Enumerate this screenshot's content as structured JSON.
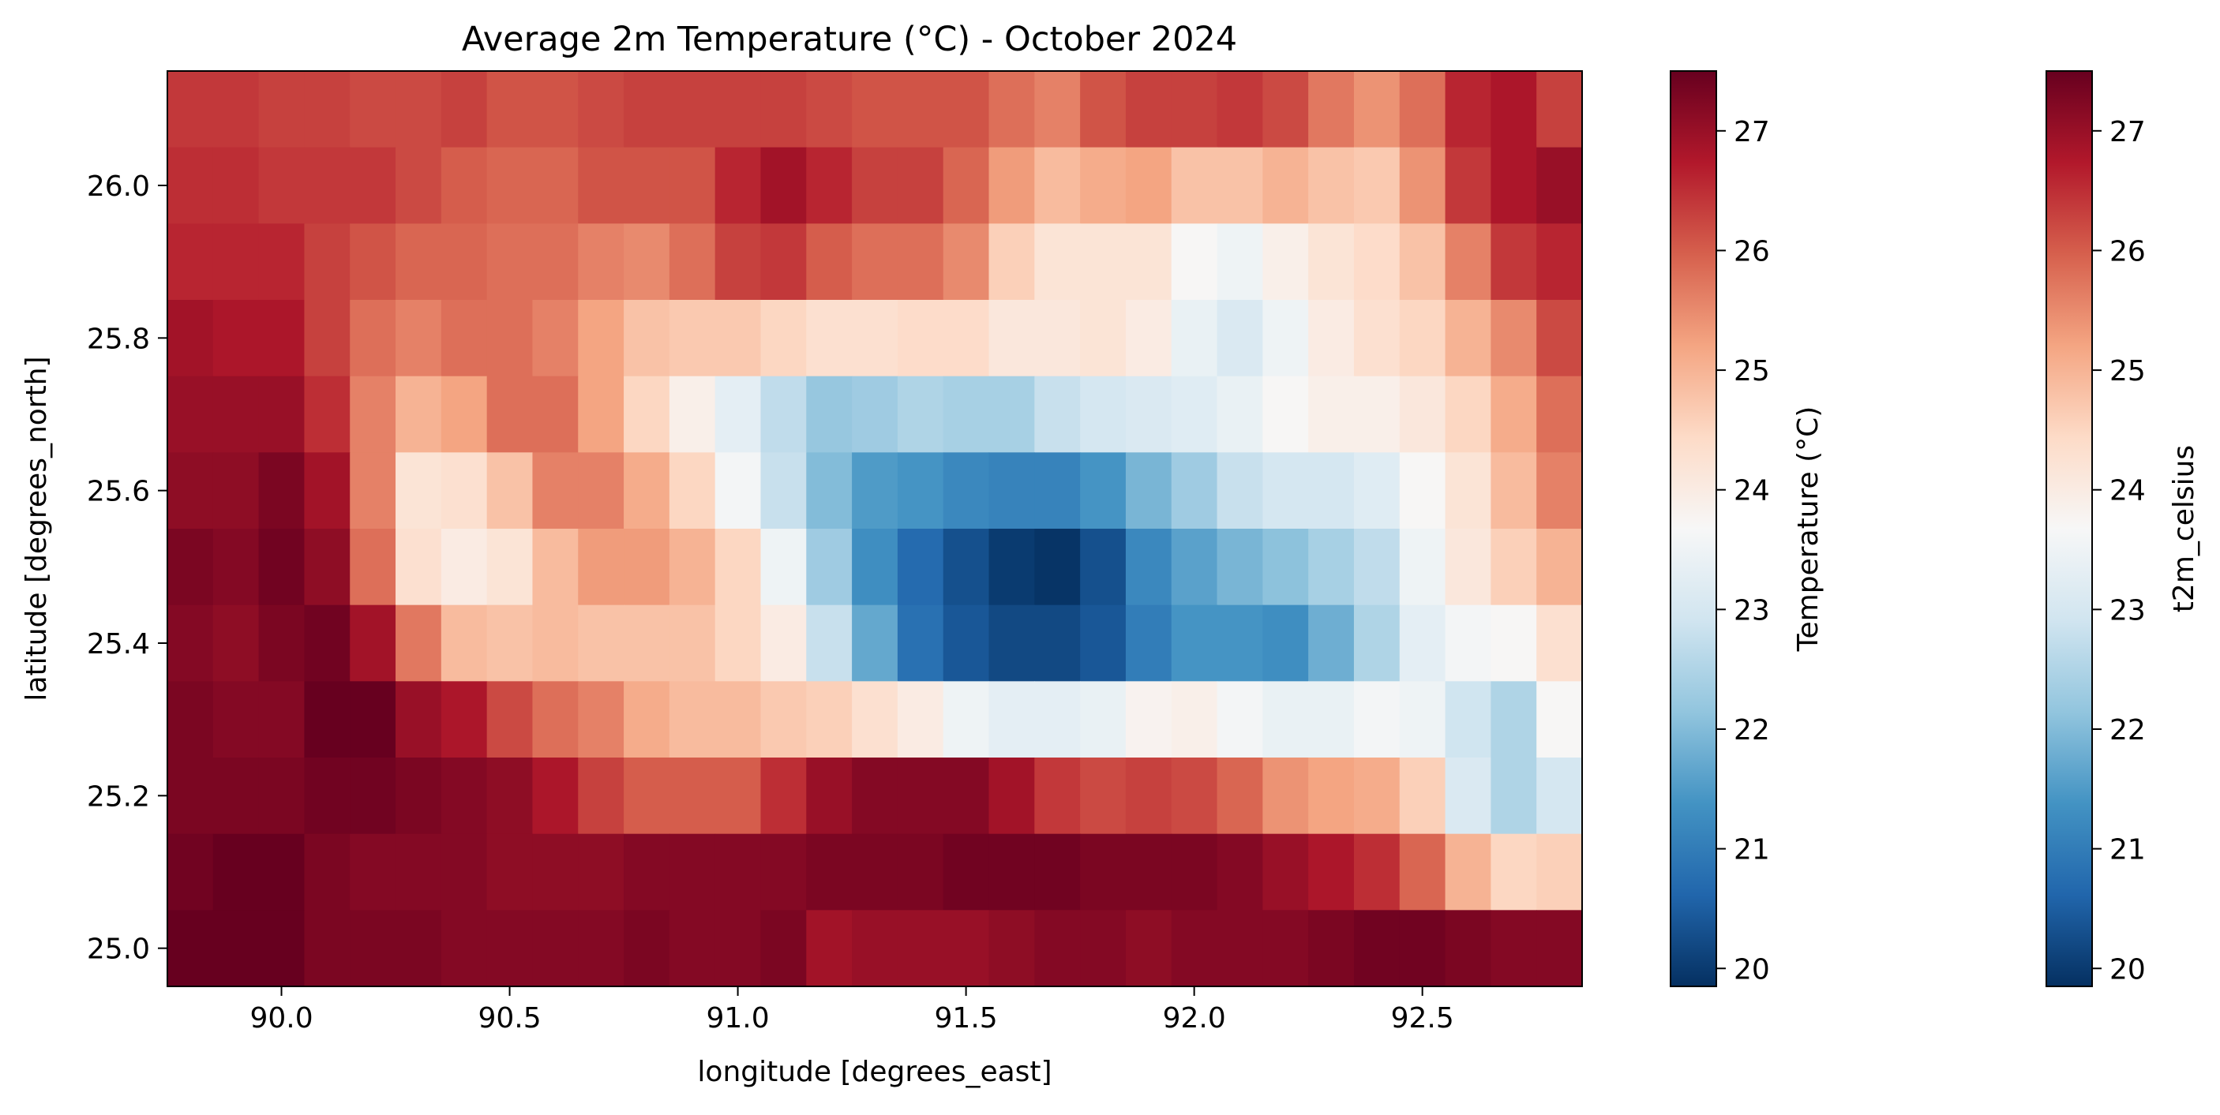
{
  "chart_data": {
    "type": "heatmap",
    "title": "Average 2m Temperature (°C) - October 2024",
    "xlabel": "longitude [degrees_east]",
    "ylabel": "latitude [degrees_north]",
    "xlim": [
      89.75,
      92.85
    ],
    "ylim": [
      24.95,
      26.15
    ],
    "x_ticks": [
      90.0,
      90.5,
      91.0,
      91.5,
      92.0,
      92.5
    ],
    "x_tick_labels": [
      "90.0",
      "90.5",
      "91.0",
      "91.5",
      "92.0",
      "92.5"
    ],
    "y_ticks": [
      25.0,
      25.2,
      25.4,
      25.6,
      25.8,
      26.0
    ],
    "y_tick_labels": [
      "25.0",
      "25.2",
      "25.4",
      "25.6",
      "25.8",
      "26.0"
    ],
    "x": [
      89.8,
      89.9,
      90.0,
      90.1,
      90.2,
      90.3,
      90.4,
      90.5,
      90.6,
      90.7,
      90.8,
      90.9,
      91.0,
      91.1,
      91.2,
      91.3,
      91.4,
      91.5,
      91.6,
      91.7,
      91.8,
      91.9,
      92.0,
      92.1,
      92.2,
      92.3,
      92.4,
      92.5,
      92.6,
      92.7,
      92.8
    ],
    "y": [
      26.1,
      26.0,
      25.9,
      25.8,
      25.7,
      25.6,
      25.5,
      25.4,
      25.3,
      25.2,
      25.1,
      25.0
    ],
    "z": [
      [
        26.4,
        26.4,
        26.3,
        26.3,
        26.2,
        26.2,
        26.3,
        26.1,
        26.1,
        26.2,
        26.3,
        26.3,
        26.3,
        26.3,
        26.2,
        26.1,
        26.1,
        26.1,
        25.8,
        25.6,
        26.1,
        26.3,
        26.3,
        26.4,
        26.2,
        25.7,
        25.4,
        25.8,
        26.6,
        26.8,
        26.3
      ],
      [
        26.5,
        26.5,
        26.4,
        26.4,
        26.4,
        26.2,
        26.0,
        25.9,
        25.9,
        26.1,
        26.1,
        26.1,
        26.6,
        26.9,
        26.6,
        26.3,
        26.3,
        25.9,
        25.3,
        24.9,
        25.1,
        25.2,
        24.8,
        24.8,
        25.0,
        24.8,
        24.7,
        25.4,
        26.4,
        26.8,
        27.0
      ],
      [
        26.6,
        26.6,
        26.6,
        26.3,
        26.1,
        25.9,
        25.9,
        25.8,
        25.8,
        25.6,
        25.5,
        25.8,
        26.3,
        26.4,
        26.0,
        25.8,
        25.8,
        25.5,
        24.6,
        24.2,
        24.2,
        24.2,
        23.7,
        23.5,
        23.9,
        24.2,
        24.4,
        24.8,
        25.6,
        26.4,
        26.6
      ],
      [
        26.9,
        26.8,
        26.8,
        26.3,
        25.8,
        25.6,
        25.8,
        25.8,
        25.6,
        25.2,
        24.8,
        24.7,
        24.7,
        24.5,
        24.3,
        24.3,
        24.4,
        24.4,
        24.1,
        24.1,
        24.2,
        24.0,
        23.4,
        23.1,
        23.5,
        24.0,
        24.3,
        24.5,
        25.0,
        25.5,
        26.2
      ],
      [
        27.0,
        27.0,
        27.0,
        26.5,
        25.6,
        25.0,
        25.2,
        25.8,
        25.8,
        25.2,
        24.5,
        23.9,
        23.3,
        22.7,
        22.2,
        22.3,
        22.5,
        22.4,
        22.4,
        22.8,
        23.0,
        23.1,
        23.2,
        23.4,
        23.7,
        23.9,
        23.9,
        24.1,
        24.5,
        25.1,
        25.8
      ],
      [
        27.1,
        27.1,
        27.3,
        26.9,
        25.6,
        24.2,
        24.3,
        24.8,
        25.6,
        25.6,
        25.1,
        24.5,
        23.6,
        22.8,
        22.0,
        21.5,
        21.4,
        21.2,
        21.1,
        21.1,
        21.4,
        21.9,
        22.3,
        22.8,
        23.0,
        23.0,
        23.2,
        23.7,
        24.2,
        24.9,
        25.6
      ],
      [
        27.3,
        27.2,
        27.4,
        27.1,
        25.8,
        24.3,
        24.0,
        24.2,
        24.9,
        25.3,
        25.3,
        25.0,
        24.5,
        23.5,
        22.3,
        21.3,
        20.7,
        20.3,
        20.0,
        19.9,
        20.3,
        21.2,
        21.6,
        21.9,
        22.1,
        22.4,
        22.7,
        23.5,
        24.1,
        24.6,
        25.0
      ],
      [
        27.2,
        27.1,
        27.3,
        27.4,
        26.9,
        25.7,
        24.9,
        24.8,
        24.9,
        24.8,
        24.8,
        24.8,
        24.5,
        24.0,
        22.8,
        21.7,
        20.8,
        20.4,
        20.2,
        20.2,
        20.4,
        21.0,
        21.4,
        21.4,
        21.3,
        21.8,
        22.5,
        23.3,
        23.6,
        23.7,
        24.3
      ],
      [
        27.3,
        27.2,
        27.2,
        27.5,
        27.6,
        27.0,
        26.8,
        26.2,
        25.8,
        25.6,
        25.1,
        24.9,
        24.9,
        24.7,
        24.6,
        24.3,
        24.0,
        23.5,
        23.3,
        23.3,
        23.4,
        23.8,
        23.9,
        23.6,
        23.4,
        23.4,
        23.6,
        23.5,
        22.9,
        22.5,
        23.7
      ],
      [
        27.3,
        27.3,
        27.3,
        27.4,
        27.4,
        27.3,
        27.2,
        27.1,
        26.8,
        26.3,
        26.0,
        26.0,
        26.0,
        26.5,
        27.0,
        27.2,
        27.2,
        27.2,
        26.9,
        26.4,
        26.2,
        26.3,
        26.2,
        25.9,
        25.4,
        25.2,
        25.1,
        24.6,
        23.1,
        22.5,
        23.0
      ],
      [
        27.4,
        27.5,
        27.5,
        27.3,
        27.2,
        27.2,
        27.2,
        27.1,
        27.1,
        27.1,
        27.2,
        27.2,
        27.2,
        27.2,
        27.3,
        27.3,
        27.3,
        27.4,
        27.4,
        27.4,
        27.3,
        27.3,
        27.3,
        27.2,
        27.0,
        26.8,
        26.5,
        25.9,
        25.0,
        24.5,
        24.6
      ],
      [
        27.5,
        27.5,
        27.5,
        27.3,
        27.3,
        27.3,
        27.2,
        27.2,
        27.2,
        27.2,
        27.3,
        27.2,
        27.2,
        27.3,
        26.9,
        27.0,
        27.0,
        27.0,
        27.1,
        27.2,
        27.2,
        27.1,
        27.2,
        27.2,
        27.2,
        27.3,
        27.4,
        27.4,
        27.3,
        27.2,
        27.2
      ]
    ],
    "colorbars": [
      {
        "label": "Temperature (°C)",
        "range": [
          19.85,
          27.5
        ],
        "ticks": [
          20,
          21,
          22,
          23,
          24,
          25,
          26,
          27
        ],
        "tick_labels": [
          "20",
          "21",
          "22",
          "23",
          "24",
          "25",
          "26",
          "27"
        ]
      },
      {
        "label": "t2m_celsius",
        "range": [
          19.85,
          27.5
        ],
        "ticks": [
          20,
          21,
          22,
          23,
          24,
          25,
          26,
          27
        ],
        "tick_labels": [
          "20",
          "21",
          "22",
          "23",
          "24",
          "25",
          "26",
          "27"
        ]
      }
    ],
    "colormap": "RdBu_r",
    "colormap_stops": [
      "#053061",
      "#2166ac",
      "#4393c3",
      "#92c5de",
      "#d1e5f0",
      "#f7f7f7",
      "#fddbc7",
      "#f4a582",
      "#d6604d",
      "#b2182b",
      "#67001f"
    ],
    "grid": false
  }
}
